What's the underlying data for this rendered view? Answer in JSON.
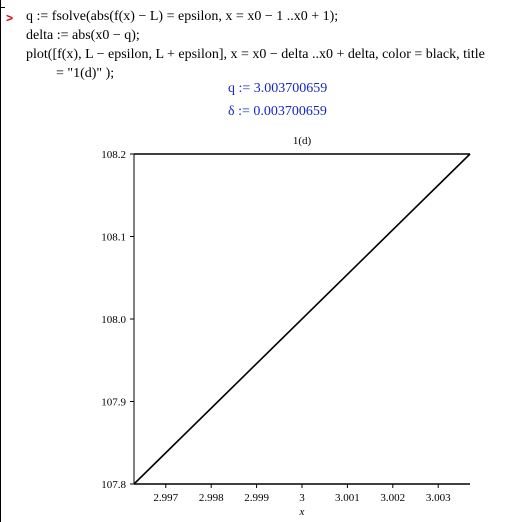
{
  "worksheet": {
    "prompt": ">",
    "input_lines": [
      "q := fsolve(abs(f(x) − L) = epsilon, x = x0 − 1 ..x0 + 1);",
      "delta := abs(x0 − q);",
      "plot([f(x), L − epsilon, L + epsilon], x = x0 − delta ..x0 + delta, color = black, title",
      "= \"1(d)\" );"
    ],
    "outputs": {
      "q": "q := 3.003700659",
      "delta": "δ := 0.003700659"
    }
  },
  "chart_data": {
    "type": "line",
    "title": "1(d)",
    "xlabel": "x",
    "ylabel": "",
    "xlim": [
      2.9963,
      3.0037
    ],
    "ylim": [
      107.8,
      108.2
    ],
    "x_ticks": [
      2.997,
      2.998,
      2.999,
      3,
      3.001,
      3.002,
      3.003
    ],
    "x_tick_labels": [
      "2.997",
      "2.998",
      "2.999",
      "3",
      "3.001",
      "3.002",
      "3.003"
    ],
    "y_ticks": [
      107.8,
      107.9,
      108.0,
      108.1,
      108.2
    ],
    "y_tick_labels": [
      "107.8",
      "107.9",
      "108.0",
      "108.1",
      "108.2"
    ],
    "series": [
      {
        "x": [
          2.9963,
          3.0037
        ],
        "y": [
          107.8,
          108.2
        ],
        "color": "#000000"
      },
      {
        "x": [
          2.9963,
          3.0037
        ],
        "y": [
          107.8,
          107.8
        ],
        "color": "#000000"
      },
      {
        "x": [
          2.9963,
          3.0037
        ],
        "y": [
          108.2,
          108.2
        ],
        "color": "#000000"
      }
    ]
  }
}
